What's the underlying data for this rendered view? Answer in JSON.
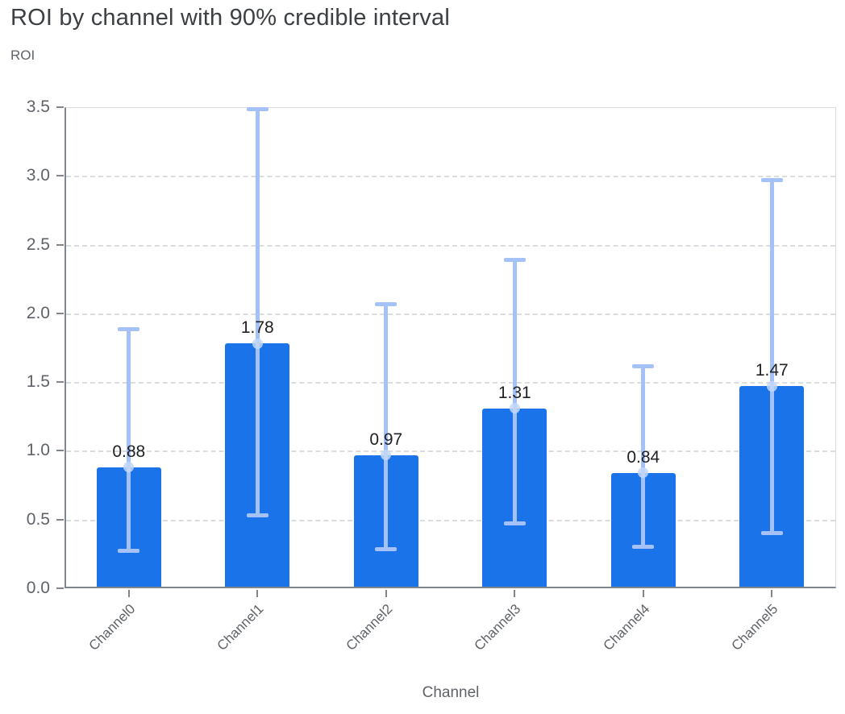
{
  "chart_data": {
    "type": "bar",
    "title": "ROI by channel with 90% credible interval",
    "ylabel": "ROI",
    "xlabel": "Channel",
    "categories": [
      "Channel0",
      "Channel1",
      "Channel2",
      "Channel3",
      "Channel4",
      "Channel5"
    ],
    "values": [
      0.88,
      1.78,
      0.97,
      1.31,
      0.84,
      1.47
    ],
    "value_labels": [
      "0.88",
      "1.78",
      "0.97",
      "1.31",
      "0.84",
      "1.47"
    ],
    "ci_lower": [
      0.27,
      0.53,
      0.28,
      0.47,
      0.3,
      0.4
    ],
    "ci_upper": [
      1.89,
      3.49,
      2.07,
      2.39,
      1.62,
      2.97
    ],
    "ylim": [
      0,
      3.5
    ],
    "ytick_values": [
      0.0,
      0.5,
      1.0,
      1.5,
      2.0,
      2.5,
      3.0,
      3.5
    ],
    "ytick_labels": [
      "0.0",
      "0.5",
      "1.0",
      "1.5",
      "2.0",
      "2.5",
      "3.0",
      "3.5"
    ],
    "grid": "dashed-horizontal",
    "legend_position": "none",
    "error_bar_meaning": "90% credible interval",
    "colors": {
      "bar": "#1a73e8",
      "error_bar": "#a4c2f8",
      "mean_marker": "#c3d7fc",
      "grid": "#dadce0",
      "axis": "#80868b",
      "title_text": "#3c4043",
      "label_text": "#5f6368",
      "value_text": "#202124"
    }
  }
}
